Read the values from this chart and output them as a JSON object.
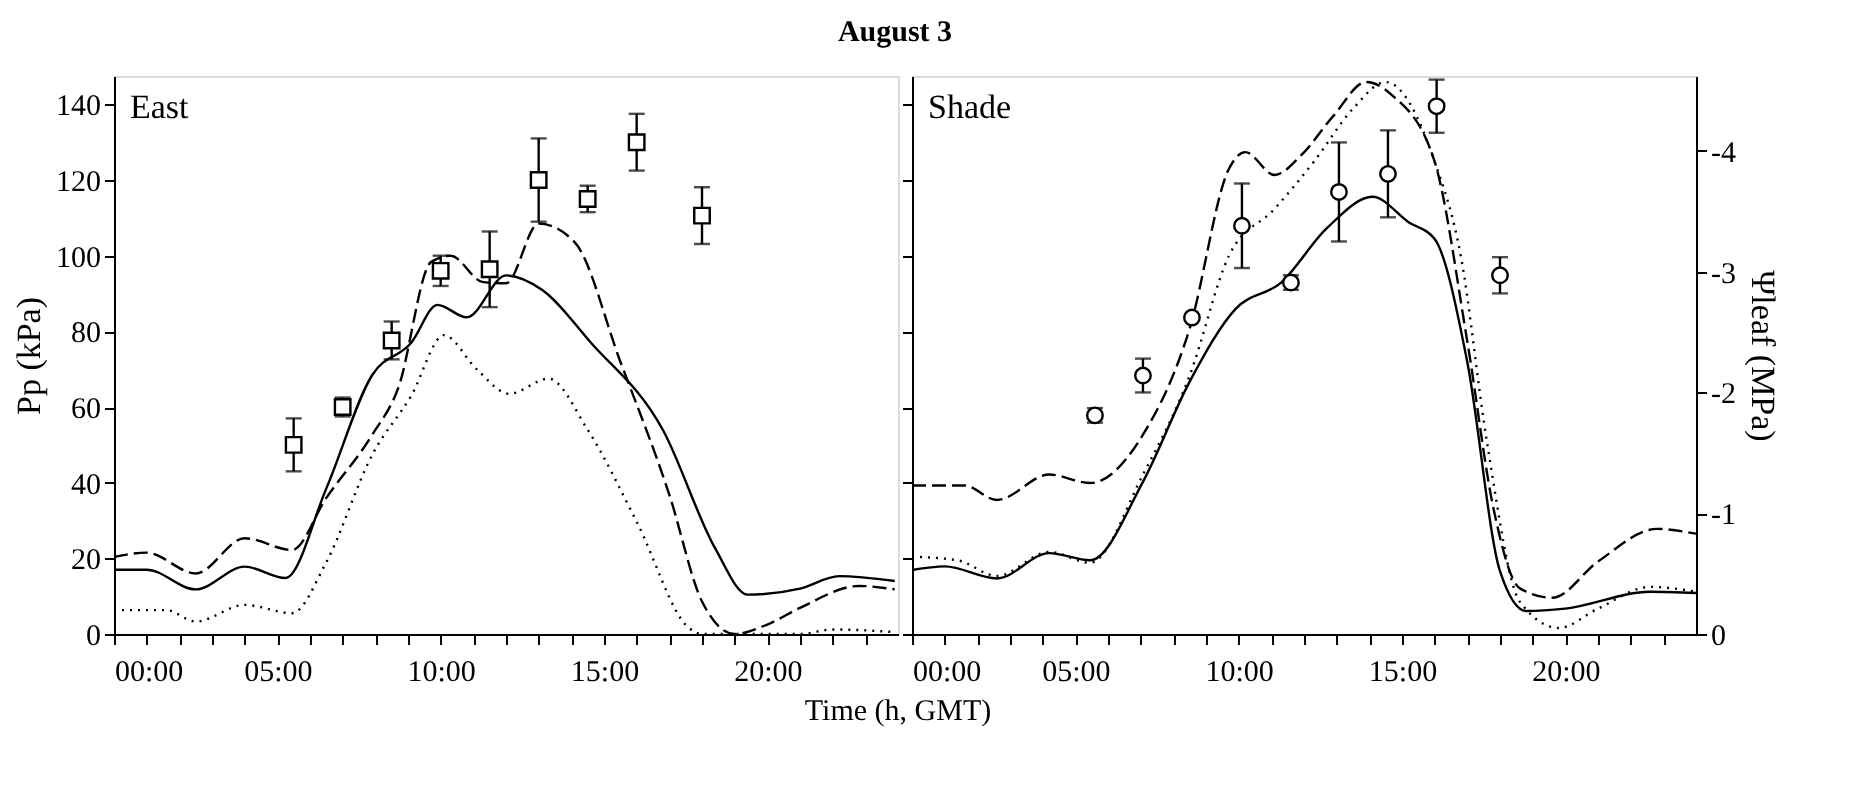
{
  "chart_data": [
    {
      "type": "line",
      "title": "August 3",
      "xlabel": "Time (h, GMT)",
      "ylabel": "Pp (kPa)",
      "annotations": [
        "East"
      ],
      "xlim": [
        0,
        24
      ],
      "ylim": [
        0,
        147.5
      ],
      "xticks": [
        {
          "value": 0,
          "label": "00:00"
        },
        {
          "value": 1,
          "label": null
        },
        {
          "value": 2,
          "label": null
        },
        {
          "value": 3,
          "label": null
        },
        {
          "value": 4,
          "label": null
        },
        {
          "value": 5,
          "label": "05:00"
        },
        {
          "value": 6,
          "label": null
        },
        {
          "value": 7,
          "label": null
        },
        {
          "value": 8,
          "label": null
        },
        {
          "value": 9,
          "label": null
        },
        {
          "value": 10,
          "label": "10:00"
        },
        {
          "value": 11,
          "label": null
        },
        {
          "value": 12,
          "label": null
        },
        {
          "value": 13,
          "label": null
        },
        {
          "value": 14,
          "label": null
        },
        {
          "value": 15,
          "label": "15:00"
        },
        {
          "value": 16,
          "label": null
        },
        {
          "value": 17,
          "label": null
        },
        {
          "value": 18,
          "label": null
        },
        {
          "value": 19,
          "label": null
        },
        {
          "value": 20,
          "label": "20:00"
        },
        {
          "value": 21,
          "label": null
        },
        {
          "value": 22,
          "label": null
        },
        {
          "value": 23,
          "label": null
        }
      ],
      "yticks": [
        0,
        20,
        40,
        60,
        80,
        100,
        120,
        140
      ],
      "series": [
        {
          "line_style": "solid",
          "color": "#000000",
          "x": [
            0,
            1,
            2.5,
            4,
            5.25,
            6.5,
            7.9,
            9.1,
            9.9,
            10.8,
            12.0,
            13.1,
            14.6,
            16.8,
            18.4,
            19.4,
            21,
            22.2,
            23.9
          ],
          "values": [
            17,
            17,
            11.8,
            17.8,
            14.8,
            38.5,
            68.4,
            77,
            87,
            83.7,
            94.8,
            91,
            77,
            54,
            22.7,
            10.4,
            12,
            15.3,
            14
          ]
        },
        {
          "line_style": "dashed",
          "color": "#000000",
          "x": [
            0,
            1,
            2.5,
            4,
            5.45,
            6.5,
            7.9,
            8.7,
            9.7,
            10.3,
            11.3,
            12.0,
            13.0,
            14.1,
            15.5,
            17,
            18,
            19,
            20,
            21,
            22.8,
            23.9
          ],
          "values": [
            20.4,
            21.5,
            16,
            25.3,
            22.2,
            36,
            52.6,
            65,
            98.3,
            100,
            93,
            92.7,
            108.5,
            103.6,
            72,
            36.8,
            8.6,
            0,
            2.5,
            6.9,
            12.7,
            11.8
          ]
        },
        {
          "line_style": "dotted",
          "color": "#000000",
          "x": [
            0,
            1.6,
            2.5,
            4,
            5.45,
            6.5,
            7.9,
            9.1,
            10.1,
            11.1,
            12.1,
            13.3,
            14.5,
            16,
            17.6,
            18,
            19,
            21,
            22,
            23.9
          ],
          "values": [
            6.3,
            6.3,
            3.3,
            7.7,
            5.5,
            19,
            47.3,
            63,
            79,
            70,
            63.5,
            67.5,
            54,
            29.7,
            1.6,
            0,
            0,
            0,
            1.2,
            0.5
          ]
        },
        {
          "type": "scatter",
          "marker": "square",
          "color": "#000000",
          "x": [
            5.5,
            7.0,
            8.5,
            10.0,
            11.5,
            13.0,
            14.5,
            16.0,
            18.0
          ],
          "values": [
            50,
            60,
            77.6,
            96,
            96.4,
            120,
            115,
            130,
            110.6
          ],
          "errors": [
            7,
            2.5,
            5,
            4,
            10,
            11,
            3.5,
            7.5,
            7.5
          ]
        }
      ]
    },
    {
      "type": "line",
      "y2label": "Ψleaf (MPa)",
      "annotations": [
        "Shade"
      ],
      "tick_labels": "x",
      "xlim": [
        0,
        24
      ],
      "ylim": [
        0,
        147.5
      ],
      "y2lim": [
        0,
        -4.62
      ],
      "xticks": [
        {
          "value": 0,
          "label": "00:00"
        },
        {
          "value": 1,
          "label": null
        },
        {
          "value": 2,
          "label": null
        },
        {
          "value": 3,
          "label": null
        },
        {
          "value": 4,
          "label": null
        },
        {
          "value": 5,
          "label": "05:00"
        },
        {
          "value": 6,
          "label": null
        },
        {
          "value": 7,
          "label": null
        },
        {
          "value": 8,
          "label": null
        },
        {
          "value": 9,
          "label": null
        },
        {
          "value": 10,
          "label": "10:00"
        },
        {
          "value": 11,
          "label": null
        },
        {
          "value": 12,
          "label": null
        },
        {
          "value": 13,
          "label": null
        },
        {
          "value": 14,
          "label": null
        },
        {
          "value": 15,
          "label": "15:00"
        },
        {
          "value": 16,
          "label": null
        },
        {
          "value": 17,
          "label": null
        },
        {
          "value": 18,
          "label": null
        },
        {
          "value": 19,
          "label": null
        },
        {
          "value": 20,
          "label": "20:00"
        },
        {
          "value": 21,
          "label": null
        },
        {
          "value": 22,
          "label": null
        },
        {
          "value": 23,
          "label": null
        }
      ],
      "yticks": [
        0,
        20,
        40,
        60,
        80,
        100,
        120,
        140
      ],
      "y2ticks": [
        {
          "value": 0,
          "label": "0"
        },
        {
          "value": -1,
          "label": "-1"
        },
        {
          "value": -2,
          "label": "-2"
        },
        {
          "value": -3,
          "label": "-3"
        },
        {
          "value": -4,
          "label": "-4"
        }
      ],
      "series": [
        {
          "axis": "y2",
          "line_style": "solid",
          "color": "#000000",
          "x": [
            0,
            1,
            2.6,
            4.2,
            5.45,
            7.07,
            8.5,
            9.9,
            11.3,
            12.7,
            14.1,
            15.2,
            16,
            17,
            18,
            18.8,
            20,
            22.6,
            24
          ],
          "values": [
            -0.53,
            -0.56,
            -0.46,
            -0.67,
            -0.61,
            -1.26,
            -2.09,
            -2.69,
            -2.91,
            -3.36,
            -3.62,
            -3.41,
            -3.27,
            -2.25,
            -0.52,
            -0.19,
            -0.21,
            -0.35,
            -0.34
          ]
        },
        {
          "axis": "y2",
          "line_style": "dashed",
          "color": "#000000",
          "x": [
            0,
            1.6,
            2.6,
            4.2,
            5.45,
            7.07,
            8.5,
            9.7,
            10.2,
            11.1,
            11.9,
            12.9,
            13.9,
            14.7,
            16,
            17,
            17.8,
            18.6,
            19.6,
            21,
            22.8,
            24
          ],
          "values": [
            -1.23,
            -1.23,
            -1.11,
            -1.32,
            -1.25,
            -1.65,
            -2.53,
            -3.85,
            -3.99,
            -3.8,
            -3.96,
            -4.29,
            -4.57,
            -4.46,
            -3.91,
            -2.42,
            -1.04,
            -0.38,
            -0.3,
            -0.6,
            -0.87,
            -0.83
          ]
        },
        {
          "axis": "y2",
          "line_style": "dotted",
          "color": "#000000",
          "x": [
            0,
            1.4,
            2.6,
            4.2,
            5.45,
            7.07,
            8.5,
            9.7,
            11.1,
            12.3,
            13.5,
            14.5,
            16,
            16.8,
            17.6,
            18.6,
            19.8,
            21,
            22.6,
            24
          ],
          "values": [
            -0.64,
            -0.61,
            -0.48,
            -0.68,
            -0.59,
            -1.32,
            -2.14,
            -3.13,
            -3.52,
            -3.91,
            -4.35,
            -4.57,
            -3.91,
            -3.13,
            -1.59,
            -0.27,
            -0.05,
            -0.21,
            -0.39,
            -0.35
          ]
        },
        {
          "type": "scatter",
          "axis": "y2",
          "marker": "circle",
          "color": "#000000",
          "x": [
            5.6,
            7.07,
            8.57,
            10.1,
            11.6,
            13.07,
            14.57,
            16.06,
            18.0
          ],
          "values": [
            -1.81,
            -2.14,
            -2.62,
            -3.38,
            -2.91,
            -3.66,
            -3.81,
            -4.37,
            -2.97
          ],
          "errors": [
            0.06,
            0.14,
            null,
            0.35,
            0.06,
            0.41,
            0.36,
            0.22,
            0.15
          ]
        }
      ]
    }
  ]
}
